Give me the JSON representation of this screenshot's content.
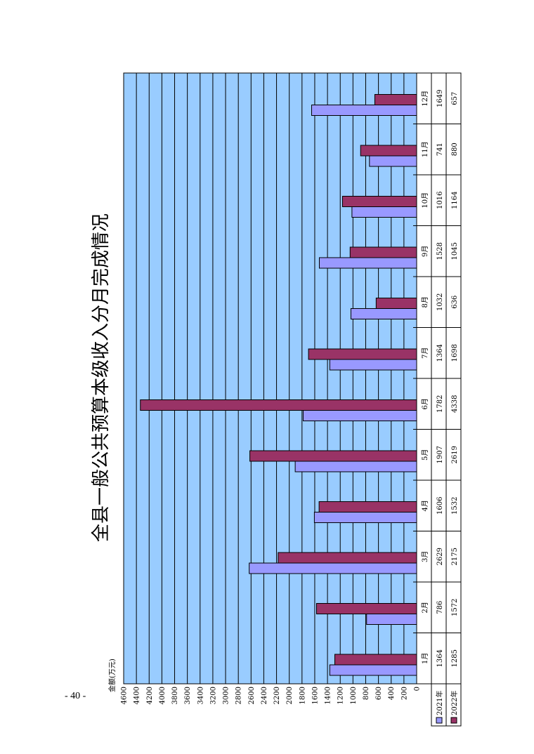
{
  "page": {
    "page_number": "- 40 -"
  },
  "chart_data": {
    "type": "bar",
    "title": "全县一般公共预算本级收入分月完成情况",
    "ylabel": "金额(万元)",
    "xlabel": "",
    "categories": [
      "1月",
      "2月",
      "3月",
      "4月",
      "5月",
      "6月",
      "7月",
      "8月",
      "9月",
      "10月",
      "11月",
      "12月"
    ],
    "series": [
      {
        "name": "2021年",
        "values": [
          1364,
          786,
          2629,
          1606,
          1907,
          1782,
          1364,
          1032,
          1528,
          1016,
          741,
          1649
        ],
        "color": "#9999ff"
      },
      {
        "name": "2022年",
        "values": [
          1285,
          1572,
          2175,
          1532,
          2619,
          4338,
          1698,
          636,
          1045,
          1164,
          880,
          657
        ],
        "color": "#993366"
      }
    ],
    "ylim": [
      0,
      4600
    ],
    "ytick_step": 200,
    "grid": true,
    "plot_background": "#99ccff",
    "orientation": "rotated-90-ccw",
    "legend": "data-table"
  }
}
